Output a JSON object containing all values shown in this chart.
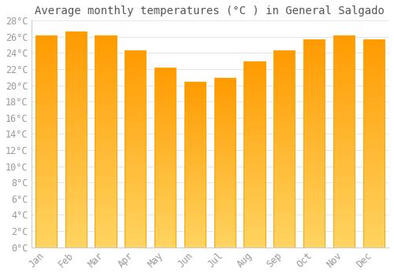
{
  "title": "Average monthly temperatures (°C ) in General Salgado",
  "months": [
    "Jan",
    "Feb",
    "Mar",
    "Apr",
    "May",
    "Jun",
    "Jul",
    "Aug",
    "Sep",
    "Oct",
    "Nov",
    "Dec"
  ],
  "values": [
    26.2,
    26.7,
    26.2,
    24.3,
    22.2,
    20.5,
    20.9,
    23.0,
    24.3,
    25.7,
    26.2,
    25.7
  ],
  "bar_color_inner": "#FFC125",
  "bar_color_edge": "#FFA500",
  "bar_color_left_edge": "#E08000",
  "background_color": "#ffffff",
  "plot_bg_color": "#ffffff",
  "grid_color": "#e0e0e0",
  "ytick_step": 2,
  "ymin": 0,
  "ymax": 28,
  "title_fontsize": 10,
  "tick_fontsize": 8.5,
  "tick_font_color": "#999999",
  "title_color": "#555555",
  "font_family": "monospace"
}
